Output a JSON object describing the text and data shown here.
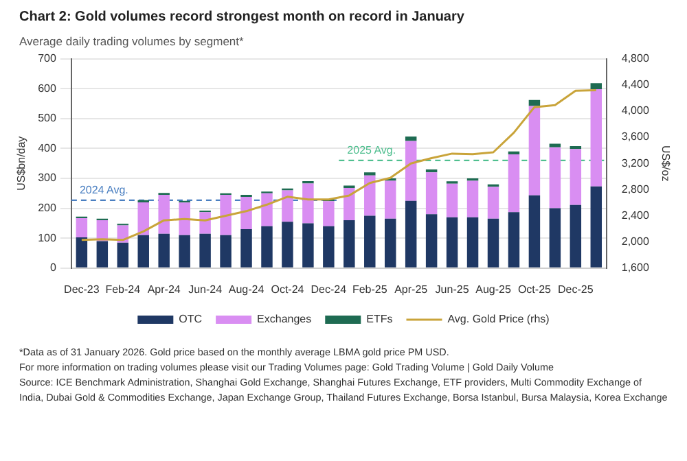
{
  "chart_data": {
    "type": "bar",
    "title": "Chart 2: Gold volumes record strongest month on record in January",
    "subtitle": "Average daily trading volumes by segment*",
    "ylabel": "US$bn/day",
    "y2label": "US$/oz",
    "categories": [
      "Dec-23",
      null,
      "Feb-24",
      null,
      "Apr-24",
      null,
      "Jun-24",
      null,
      "Aug-24",
      null,
      "Oct-24",
      null,
      "Dec-24",
      null,
      "Feb-25",
      null,
      "Apr-25",
      null,
      "Jun-25",
      null,
      "Aug-25",
      null,
      "Oct-25",
      null,
      "Dec-25",
      null
    ],
    "stacked": true,
    "series": [
      {
        "name": "OTC",
        "color": "#1f3864",
        "values": [
          103,
          90,
          85,
          110,
          115,
          110,
          115,
          110,
          130,
          140,
          155,
          150,
          140,
          160,
          175,
          165,
          225,
          180,
          170,
          170,
          165,
          187,
          243,
          200,
          211,
          273
        ]
      },
      {
        "name": "Exchanges",
        "color": "#d98ef2",
        "values": [
          64,
          70,
          58,
          110,
          130,
          109,
          72,
          135,
          108,
          110,
          105,
          133,
          84,
          108,
          135,
          127,
          200,
          140,
          112,
          122,
          107,
          193,
          299,
          204,
          187,
          325
        ]
      },
      {
        "name": "ETFs",
        "color": "#1e6b52",
        "values": [
          5,
          5,
          5,
          7,
          6,
          6,
          5,
          5,
          7,
          6,
          6,
          8,
          6,
          8,
          10,
          8,
          15,
          10,
          8,
          8,
          8,
          10,
          20,
          12,
          10,
          20
        ]
      },
      {
        "name": "Avg. Gold Price (rhs)",
        "type": "line",
        "axis": "y2",
        "color": "#c9a43a",
        "values": [
          2030,
          2040,
          2030,
          2160,
          2330,
          2350,
          2330,
          2400,
          2470,
          2570,
          2690,
          2650,
          2650,
          2710,
          2900,
          2980,
          3200,
          3280,
          3350,
          3340,
          3370,
          3670,
          4060,
          4090,
          4310,
          4320
        ]
      }
    ],
    "ylim": [
      0,
      700
    ],
    "yticks": [
      0,
      100,
      200,
      300,
      400,
      500,
      600,
      700
    ],
    "y2lim": [
      1600,
      4800
    ],
    "y2ticks": [
      {
        "value": 1600,
        "label": "1,600"
      },
      {
        "value": 2000,
        "label": "2,000"
      },
      {
        "value": 2400,
        "label": "2,400"
      },
      {
        "value": 2800,
        "label": "2,800"
      },
      {
        "value": 3200,
        "label": "3,200"
      },
      {
        "value": 3600,
        "label": "3,600"
      },
      {
        "value": 4000,
        "label": "4,000"
      },
      {
        "value": 4400,
        "label": "4,400"
      },
      {
        "value": 4800,
        "label": "4,800"
      }
    ],
    "ref_lines": [
      {
        "axis": "y",
        "value": 227,
        "label": "2024 Avg.",
        "color": "#4a7fc1",
        "line_style": "dashed"
      },
      {
        "axis": "y",
        "value": 360,
        "label": "2025 Avg.",
        "color": "#4fbf8f",
        "line_style": "dashed"
      }
    ],
    "grid": "y",
    "legend": "bottom",
    "annotations": [
      "*Data as of 31 January 2026. Gold price based on the monthly average LBMA gold price PM USD.",
      "For more information on trading volumes please visit our Trading Volumes page: Gold Trading Volume | Gold Daily Volume",
      "Source: ICE Benchmark Administration, Shanghai Gold Exchange, Shanghai Futures Exchange, ETF providers, Multi Commodity Exchange of India, Dubai Gold & Commodities Exchange, Japan Exchange Group, Thailand Futures Exchange, Borsa Istanbul, Bursa Malaysia, Korea Exchange"
    ]
  }
}
